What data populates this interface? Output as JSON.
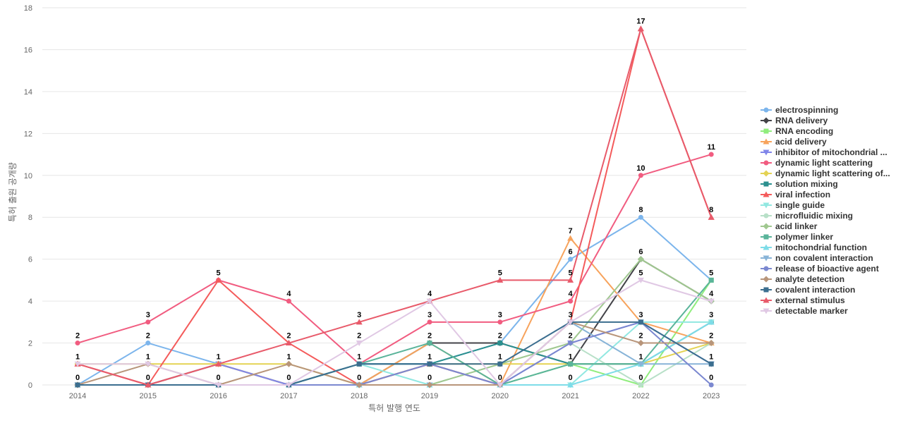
{
  "chart_data": {
    "type": "line",
    "xlabel": "특허 발행 연도",
    "ylabel": "특허 출원 공개량",
    "x": [
      "2014",
      "2015",
      "2016",
      "2017",
      "2018",
      "2019",
      "2020",
      "2021",
      "2022",
      "2023"
    ],
    "ylim": [
      0,
      18
    ],
    "yticks": [
      0,
      2,
      4,
      6,
      8,
      10,
      12,
      14,
      16,
      18
    ],
    "grid": "horizontal",
    "legend_position": "right",
    "series": [
      {
        "name": "electrospinning",
        "color": "#7cb5ec",
        "marker": "circle",
        "values": [
          0,
          2,
          1,
          0,
          1,
          1,
          2,
          6,
          8,
          5
        ]
      },
      {
        "name": "RNA delivery",
        "color": "#434348",
        "marker": "diamond",
        "values": [
          0,
          0,
          1,
          0,
          0,
          2,
          2,
          1,
          6,
          4
        ]
      },
      {
        "name": "RNA encoding",
        "color": "#90ed7d",
        "marker": "square",
        "values": [
          0,
          0,
          1,
          0,
          0,
          1,
          0,
          1,
          0,
          5
        ]
      },
      {
        "name": "acid delivery",
        "color": "#f7a35c",
        "marker": "triangle",
        "values": [
          0,
          0,
          1,
          0,
          0,
          2,
          0,
          7,
          3,
          2
        ]
      },
      {
        "name": "inhibitor of mitochondrial ...",
        "color": "#8085e9",
        "marker": "triangle-down",
        "values": [
          0,
          0,
          1,
          0,
          0,
          1,
          0,
          2,
          3,
          1
        ]
      },
      {
        "name": "dynamic light scattering",
        "color": "#f15c80",
        "marker": "circle",
        "values": [
          2,
          3,
          5,
          4,
          1,
          3,
          3,
          4,
          10,
          11
        ]
      },
      {
        "name": "dynamic light scattering of...",
        "color": "#e4d354",
        "marker": "diamond",
        "values": [
          1,
          1,
          1,
          1,
          0,
          1,
          1,
          1,
          1,
          2
        ]
      },
      {
        "name": "solution mixing",
        "color": "#2b908f",
        "marker": "square",
        "values": [
          0,
          0,
          0,
          0,
          1,
          1,
          2,
          1,
          1,
          3
        ]
      },
      {
        "name": "viral infection",
        "color": "#f45b5b",
        "marker": "triangle",
        "values": [
          1,
          0,
          5,
          2,
          0,
          1,
          0,
          3,
          17,
          8
        ]
      },
      {
        "name": "single guide",
        "color": "#91e8e1",
        "marker": "triangle-down",
        "values": [
          0,
          0,
          0,
          0,
          1,
          0,
          0,
          0,
          3,
          3
        ]
      },
      {
        "name": "microfluidic mixing",
        "color": "#b8e0c8",
        "marker": "circle",
        "values": [
          0,
          0,
          0,
          0,
          0,
          0,
          1,
          2,
          0,
          2
        ]
      },
      {
        "name": "acid linker",
        "color": "#a0c890",
        "marker": "diamond",
        "values": [
          0,
          0,
          0,
          0,
          0,
          0,
          1,
          2,
          6,
          4
        ]
      },
      {
        "name": "polymer linker",
        "color": "#5ab49a",
        "marker": "square",
        "values": [
          0,
          0,
          0,
          0,
          1,
          2,
          0,
          1,
          1,
          5
        ]
      },
      {
        "name": "mitochondrial function",
        "color": "#7ddce8",
        "marker": "triangle",
        "values": [
          0,
          0,
          0,
          0,
          0,
          0,
          0,
          0,
          1,
          3
        ]
      },
      {
        "name": "non covalent interaction",
        "color": "#88b4d8",
        "marker": "triangle-down",
        "values": [
          0,
          0,
          0,
          0,
          0,
          0,
          0,
          3,
          1,
          1
        ]
      },
      {
        "name": "release of bioactive agent",
        "color": "#7b88d0",
        "marker": "circle",
        "values": [
          0,
          0,
          0,
          0,
          0,
          1,
          0,
          2,
          3,
          0
        ]
      },
      {
        "name": "analyte detection",
        "color": "#b8957a",
        "marker": "diamond",
        "values": [
          0,
          1,
          0,
          1,
          0,
          0,
          0,
          3,
          2,
          2
        ]
      },
      {
        "name": "covalent interaction",
        "color": "#3b6e8f",
        "marker": "square",
        "values": [
          0,
          0,
          0,
          0,
          1,
          1,
          1,
          3,
          3,
          1
        ]
      },
      {
        "name": "external stimulus",
        "color": "#e85a6a",
        "marker": "triangle",
        "values": [
          1,
          0,
          1,
          2,
          3,
          4,
          5,
          5,
          17,
          8
        ]
      },
      {
        "name": "detectable marker",
        "color": "#e0c8e4",
        "marker": "triangle-down",
        "values": [
          1,
          1,
          0,
          0,
          2,
          4,
          0,
          3,
          5,
          4
        ]
      }
    ],
    "data_labels": [
      {
        "x": "2014",
        "y": 2
      },
      {
        "x": "2014",
        "y": 1
      },
      {
        "x": "2014",
        "y": 0
      },
      {
        "x": "2015",
        "y": 3
      },
      {
        "x": "2015",
        "y": 2
      },
      {
        "x": "2015",
        "y": 1
      },
      {
        "x": "2015",
        "y": 0
      },
      {
        "x": "2016",
        "y": 5
      },
      {
        "x": "2016",
        "y": 1
      },
      {
        "x": "2016",
        "y": 0
      },
      {
        "x": "2017",
        "y": 4
      },
      {
        "x": "2017",
        "y": 2
      },
      {
        "x": "2017",
        "y": 1
      },
      {
        "x": "2017",
        "y": 0
      },
      {
        "x": "2018",
        "y": 3
      },
      {
        "x": "2018",
        "y": 2
      },
      {
        "x": "2018",
        "y": 1
      },
      {
        "x": "2018",
        "y": 0
      },
      {
        "x": "2019",
        "y": 4
      },
      {
        "x": "2019",
        "y": 3
      },
      {
        "x": "2019",
        "y": 2
      },
      {
        "x": "2019",
        "y": 1
      },
      {
        "x": "2019",
        "y": 0
      },
      {
        "x": "2020",
        "y": 5
      },
      {
        "x": "2020",
        "y": 3
      },
      {
        "x": "2020",
        "y": 2
      },
      {
        "x": "2020",
        "y": 1
      },
      {
        "x": "2020",
        "y": 0
      },
      {
        "x": "2021",
        "y": 7
      },
      {
        "x": "2021",
        "y": 6
      },
      {
        "x": "2021",
        "y": 5
      },
      {
        "x": "2021",
        "y": 4
      },
      {
        "x": "2021",
        "y": 3
      },
      {
        "x": "2021",
        "y": 2
      },
      {
        "x": "2021",
        "y": 1
      },
      {
        "x": "2021",
        "y": 0
      },
      {
        "x": "2022",
        "y": 17
      },
      {
        "x": "2022",
        "y": 10
      },
      {
        "x": "2022",
        "y": 8
      },
      {
        "x": "2022",
        "y": 6
      },
      {
        "x": "2022",
        "y": 5
      },
      {
        "x": "2022",
        "y": 3
      },
      {
        "x": "2022",
        "y": 2
      },
      {
        "x": "2022",
        "y": 1
      },
      {
        "x": "2022",
        "y": 0
      },
      {
        "x": "2023",
        "y": 11
      },
      {
        "x": "2023",
        "y": 8
      },
      {
        "x": "2023",
        "y": 5
      },
      {
        "x": "2023",
        "y": 4
      },
      {
        "x": "2023",
        "y": 3
      },
      {
        "x": "2023",
        "y": 2
      },
      {
        "x": "2023",
        "y": 1
      },
      {
        "x": "2023",
        "y": 0
      }
    ]
  }
}
